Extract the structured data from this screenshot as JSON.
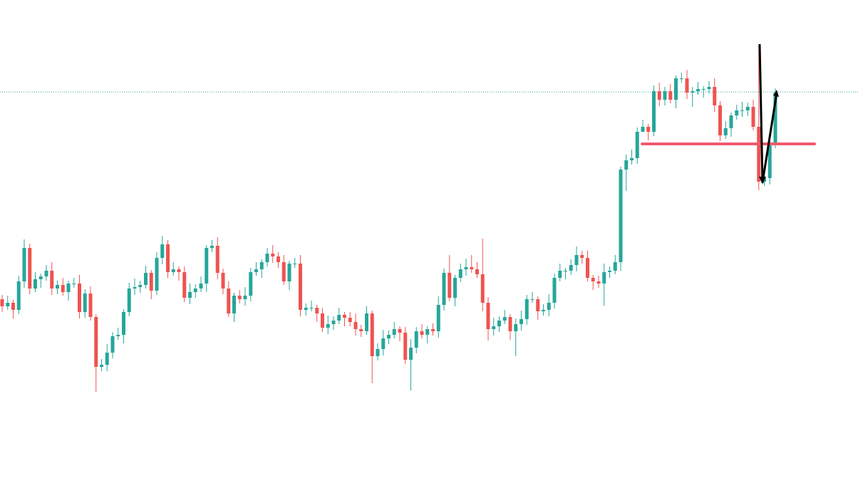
{
  "chart_data": {
    "type": "candlestick",
    "up_color": "#26a69a",
    "down_color": "#ef5350",
    "ylim": [
      0,
      678
    ],
    "price_line": {
      "value": 549,
      "color": "#26a69a"
    },
    "horizontal_line": {
      "value": 476,
      "color": "#f05a6e"
    },
    "open": [
      258,
      248,
      253,
      243,
      283,
      330,
      273,
      286,
      290,
      298,
      273,
      278,
      268,
      280,
      280,
      240,
      266,
      233,
      163,
      166,
      183,
      206,
      208,
      240,
      273,
      275,
      278,
      295,
      270,
      316,
      335,
      296,
      300,
      296,
      260,
      268,
      273,
      280,
      330,
      333,
      295,
      273,
      238,
      263,
      258,
      263,
      296,
      300,
      310,
      322,
      318,
      310,
      283,
      308,
      308,
      243,
      246,
      246,
      238,
      218,
      223,
      228,
      236,
      232,
      226,
      216,
      213,
      238,
      178,
      188,
      203,
      208,
      216,
      211,
      173,
      190,
      213,
      208,
      216,
      213,
      250,
      295,
      260,
      288,
      300,
      303,
      300,
      293,
      253,
      216,
      220,
      228,
      233,
      213,
      223,
      230,
      258,
      258,
      241,
      243,
      253,
      288,
      298,
      298,
      306,
      320,
      316,
      288,
      283,
      280,
      296,
      298,
      310,
      440,
      453,
      456,
      493,
      500,
      493,
      550,
      538,
      550,
      538,
      568,
      568,
      548,
      550,
      553,
      553,
      556,
      530,
      488,
      498,
      516,
      523,
      523,
      528,
      500,
      423,
      428,
      478
    ],
    "high": [
      264,
      263,
      257,
      291,
      342,
      336,
      296,
      294,
      306,
      310,
      284,
      288,
      284,
      288,
      292,
      272,
      276,
      237,
      174,
      195,
      212,
      218,
      244,
      281,
      287,
      284,
      305,
      299,
      324,
      347,
      341,
      310,
      304,
      304,
      280,
      279,
      290,
      334,
      341,
      345,
      301,
      283,
      267,
      271,
      275,
      302,
      310,
      314,
      330,
      334,
      324,
      320,
      312,
      316,
      320,
      252,
      256,
      250,
      246,
      235,
      234,
      246,
      240,
      240,
      238,
      222,
      248,
      242,
      196,
      215,
      214,
      226,
      220,
      219,
      202,
      219,
      223,
      220,
      224,
      262,
      301,
      320,
      292,
      308,
      315,
      320,
      310,
      343,
      261,
      232,
      234,
      243,
      237,
      231,
      242,
      264,
      268,
      262,
      251,
      265,
      294,
      308,
      302,
      314,
      332,
      326,
      326,
      292,
      291,
      308,
      304,
      320,
      444,
      461,
      468,
      499,
      510,
      504,
      558,
      562,
      556,
      560,
      572,
      576,
      580,
      556,
      563,
      557,
      564,
      568,
      536,
      508,
      520,
      531,
      535,
      534,
      538,
      616,
      436,
      490,
      554
    ],
    "low": [
      240,
      243,
      231,
      237,
      274,
      265,
      268,
      274,
      284,
      264,
      265,
      263,
      256,
      274,
      231,
      232,
      228,
      128,
      157,
      157,
      175,
      201,
      196,
      234,
      264,
      267,
      273,
      258,
      264,
      307,
      288,
      291,
      284,
      254,
      251,
      260,
      268,
      268,
      324,
      286,
      265,
      233,
      226,
      252,
      249,
      255,
      291,
      288,
      304,
      309,
      302,
      278,
      271,
      302,
      234,
      235,
      241,
      226,
      212,
      209,
      215,
      223,
      220,
      220,
      207,
      205,
      208,
      140,
      172,
      179,
      195,
      203,
      199,
      167,
      130,
      182,
      203,
      196,
      207,
      204,
      242,
      255,
      248,
      282,
      291,
      295,
      288,
      241,
      200,
      207,
      212,
      223,
      201,
      178,
      214,
      222,
      253,
      229,
      235,
      234,
      245,
      283,
      286,
      292,
      297,
      308,
      283,
      271,
      274,
      249,
      288,
      293,
      298,
      410,
      447,
      448,
      495,
      481,
      487,
      529,
      530,
      533,
      526,
      562,
      539,
      528,
      545,
      541,
      547,
      521,
      480,
      483,
      486,
      510,
      514,
      515,
      495,
      411,
      417,
      419,
      470
    ],
    "close": [
      248,
      253,
      243,
      283,
      330,
      273,
      286,
      290,
      298,
      273,
      278,
      268,
      280,
      280,
      240,
      266,
      233,
      163,
      166,
      183,
      206,
      208,
      240,
      273,
      275,
      278,
      295,
      270,
      316,
      335,
      296,
      300,
      296,
      260,
      268,
      273,
      280,
      330,
      333,
      295,
      273,
      238,
      263,
      258,
      263,
      296,
      300,
      310,
      322,
      318,
      310,
      283,
      308,
      308,
      243,
      246,
      246,
      238,
      218,
      223,
      228,
      236,
      232,
      226,
      216,
      213,
      238,
      178,
      188,
      203,
      208,
      216,
      211,
      173,
      190,
      213,
      208,
      216,
      213,
      250,
      295,
      260,
      288,
      300,
      303,
      300,
      293,
      253,
      216,
      220,
      228,
      233,
      213,
      223,
      230,
      258,
      258,
      241,
      243,
      253,
      288,
      298,
      298,
      306,
      320,
      316,
      288,
      283,
      280,
      296,
      298,
      310,
      440,
      453,
      456,
      493,
      500,
      493,
      550,
      538,
      550,
      538,
      568,
      568,
      548,
      550,
      553,
      553,
      556,
      530,
      488,
      498,
      516,
      523,
      523,
      528,
      500,
      423,
      428,
      478,
      548
    ]
  }
}
